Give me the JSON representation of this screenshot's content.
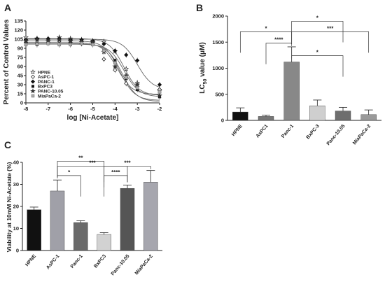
{
  "chart_data": [
    {
      "panel": "A",
      "type": "scatter",
      "xlabel": "log [Ni-Acetate]",
      "ylabel": "Percent of Control Values",
      "xlim": [
        -8,
        -2
      ],
      "ylim": [
        0,
        135
      ],
      "x_ticks": [
        -8,
        -7,
        -6,
        -5,
        -4,
        -3,
        -2
      ],
      "y_ticks": [
        0,
        15,
        30,
        45,
        60,
        75,
        90,
        105,
        120,
        135
      ],
      "legend_position": "bottom-left",
      "x": [
        -8,
        -7.5,
        -7,
        -6.5,
        -6,
        -5.5,
        -5,
        -4.5,
        -4,
        -3.5,
        -3,
        -2
      ],
      "series": [
        {
          "name": "HPNE",
          "marker": "open-star",
          "color": "#555555",
          "values": [
            108,
            106,
            104,
            108,
            106,
            104,
            102,
            101,
            85,
            56,
            33,
            20
          ],
          "logIC50": -3.6
        },
        {
          "name": "AsPC-1",
          "marker": "open-diamond",
          "color": "#555555",
          "values": [
            100,
            98,
            100,
            102,
            100,
            98,
            100,
            72,
            54,
            32,
            27,
            22
          ],
          "logIC50": -3.9
        },
        {
          "name": "PANC-1",
          "marker": "filled-diamond",
          "color": "#111111",
          "values": [
            104,
            106,
            106,
            106,
            104,
            104,
            102,
            97,
            86,
            79,
            70,
            30
          ],
          "logIC50": -3.0
        },
        {
          "name": "BxPC3",
          "marker": "filled-square",
          "color": "#111111",
          "values": [
            98,
            96,
            100,
            96,
            98,
            98,
            98,
            86,
            70,
            40,
            22,
            10
          ],
          "logIC50": -3.7
        },
        {
          "name": "PANC-10.05",
          "marker": "filled-star",
          "color": "#333333",
          "values": [
            102,
            104,
            102,
            104,
            102,
            100,
            100,
            84,
            60,
            45,
            30,
            12
          ],
          "logIC50": -3.8
        },
        {
          "name": "MiaPaCa-2",
          "marker": "filled-square-light",
          "color": "#999999",
          "values": [
            96,
            97,
            98,
            96,
            96,
            98,
            96,
            86,
            66,
            42,
            25,
            18
          ],
          "logIC50": -3.6
        }
      ]
    },
    {
      "panel": "B",
      "type": "bar",
      "ylabel_main": "LC",
      "ylabel_sub": "50",
      "ylabel_rest": " value (μM)",
      "categories": [
        "HPNE",
        "AsPC1",
        "Panc-1",
        "BxPC-3",
        "Panc-10.05",
        "MiaPaCa-2"
      ],
      "values": [
        160,
        75,
        1120,
        280,
        180,
        110
      ],
      "errors": [
        80,
        25,
        290,
        110,
        70,
        90
      ],
      "colors": [
        "#111111",
        "#777777",
        "#888888",
        "#cfcfcf",
        "#6e6e6e",
        "#9a9a9a"
      ],
      "ylim": [
        0,
        2000
      ],
      "y_ticks": [
        0,
        500,
        1000,
        1500,
        2000
      ],
      "significance": [
        {
          "from": 0,
          "to": 2,
          "label": "*",
          "level": 1700
        },
        {
          "from": 2,
          "to": 4,
          "label": "*",
          "level": 1900
        },
        {
          "from": 1,
          "to": 2,
          "label": "****",
          "level": 1480
        },
        {
          "from": 2,
          "to": 5,
          "label": "***",
          "level": 1700
        },
        {
          "from": 2,
          "to": 4,
          "label": "*",
          "level": 1240
        }
      ]
    },
    {
      "panel": "C",
      "type": "bar",
      "ylabel": "Viability at 10mM Ni-Acetate (%)",
      "categories": [
        "HPNE",
        "AsPC-1",
        "Panc-1",
        "BxPC3",
        "Panc-10.05",
        "MiaPaCa-2"
      ],
      "values": [
        18.5,
        27,
        12.7,
        7.3,
        28.2,
        31
      ],
      "errors": [
        1.2,
        5,
        0.8,
        0.8,
        1.5,
        5.3
      ],
      "colors": [
        "#111111",
        "#a0a0a8",
        "#6a6a6a",
        "#d2d2d2",
        "#555555",
        "#a6a6ae"
      ],
      "ylim": [
        0,
        40
      ],
      "y_ticks": [
        0,
        10,
        20,
        30,
        40
      ],
      "significance": [
        {
          "from": 1,
          "to": 3,
          "label": "**",
          "level": 40.5
        },
        {
          "from": 1,
          "to": 2,
          "label": "*",
          "level": 34
        },
        {
          "from": 1,
          "to": 4,
          "label": "***",
          "level": 38.2
        },
        {
          "from": 3,
          "to": 4,
          "label": "****",
          "level": 34
        },
        {
          "from": 3,
          "to": 5,
          "label": "***",
          "level": 38.2
        }
      ]
    }
  ]
}
